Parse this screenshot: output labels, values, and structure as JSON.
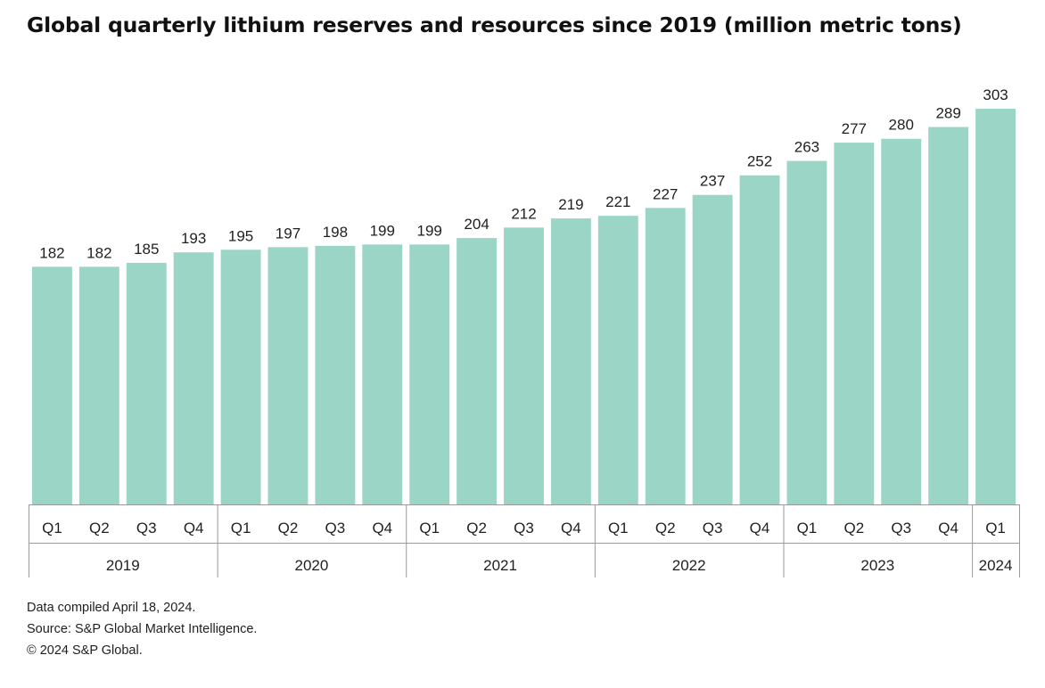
{
  "title": "Global quarterly lithium reserves and resources since 2019 (million metric tons)",
  "footnotes": {
    "compiled": "Data compiled April 18, 2024.",
    "source": "Source: S&P Global Market Intelligence.",
    "copyright": "© 2024 S&P Global."
  },
  "colors": {
    "bar": "#9ad5c6",
    "axis": "#9a9a9a",
    "text": "#1f1f1f"
  },
  "chart_data": {
    "type": "bar",
    "title": "Global quarterly lithium reserves and resources since 2019 (million metric tons)",
    "xlabel": "",
    "ylabel": "",
    "ylim": [
      0,
      303
    ],
    "grid": false,
    "legend": "none",
    "categories": [
      "Q1 2019",
      "Q2 2019",
      "Q3 2019",
      "Q4 2019",
      "Q1 2020",
      "Q2 2020",
      "Q3 2020",
      "Q4 2020",
      "Q1 2021",
      "Q2 2021",
      "Q3 2021",
      "Q4 2021",
      "Q1 2022",
      "Q2 2022",
      "Q3 2022",
      "Q4 2022",
      "Q1 2023",
      "Q2 2023",
      "Q3 2023",
      "Q4 2023",
      "Q1 2024"
    ],
    "quarter_labels": [
      "Q1",
      "Q2",
      "Q3",
      "Q4",
      "Q1",
      "Q2",
      "Q3",
      "Q4",
      "Q1",
      "Q2",
      "Q3",
      "Q4",
      "Q1",
      "Q2",
      "Q3",
      "Q4",
      "Q1",
      "Q2",
      "Q3",
      "Q4",
      "Q1"
    ],
    "year_groups": [
      {
        "label": "2019",
        "count": 4
      },
      {
        "label": "2020",
        "count": 4
      },
      {
        "label": "2021",
        "count": 4
      },
      {
        "label": "2022",
        "count": 4
      },
      {
        "label": "2023",
        "count": 4
      },
      {
        "label": "2024",
        "count": 1
      }
    ],
    "values": [
      182,
      182,
      185,
      193,
      195,
      197,
      198,
      199,
      199,
      204,
      212,
      219,
      221,
      227,
      237,
      252,
      263,
      277,
      280,
      289,
      303
    ]
  }
}
